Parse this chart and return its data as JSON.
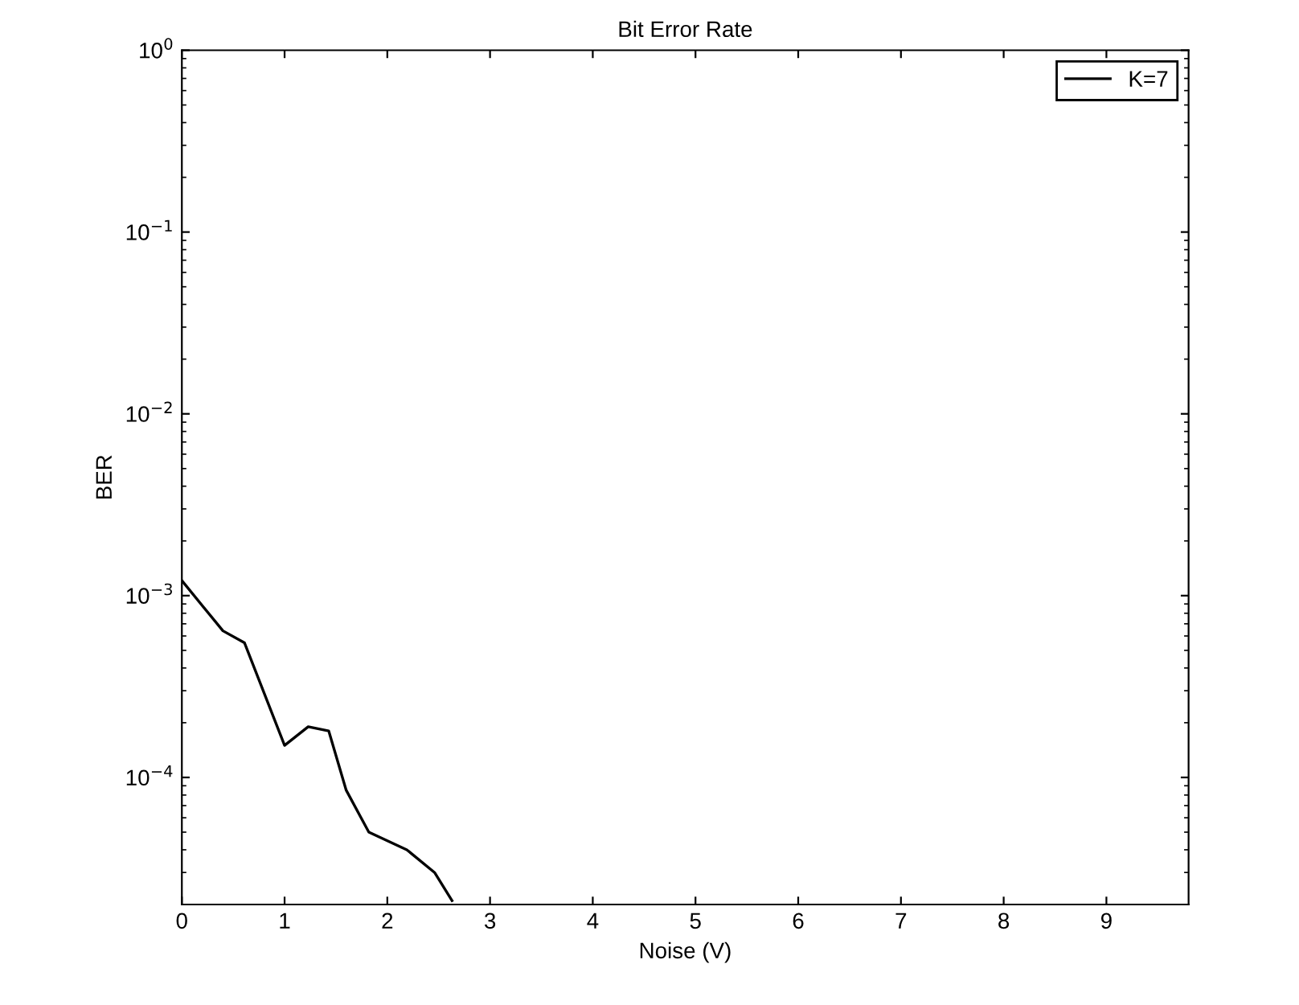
{
  "chart_data": {
    "type": "line",
    "title": "Bit Error Rate",
    "xlabel": "Noise (V)",
    "ylabel": "BER",
    "log": "y",
    "xlim": [
      0,
      9.8
    ],
    "xticks": [
      0,
      1,
      2,
      3,
      4,
      5,
      6,
      7,
      8,
      9
    ],
    "ylim": [
      2e-05,
      1
    ],
    "yticks": [
      {
        "value": 0.0001,
        "label": "10$^{−4}$"
      },
      {
        "value": 0.001,
        "label": "10$^{−3}$"
      },
      {
        "value": 0.01,
        "label": "10$^{−2}$"
      },
      {
        "value": 0.1,
        "label": "10$^{−1}$"
      },
      {
        "value": 1,
        "label": "10$^{0}$"
      }
    ],
    "grid": false,
    "legend": "top right",
    "marker": "none",
    "line_style": "solid",
    "series": [
      {
        "name": "K=7",
        "color": "#000000",
        "x": [
          0,
          0.4,
          0.61,
          1.0,
          1.23,
          1.43,
          1.6,
          1.82,
          2.19,
          2.46,
          2.63
        ],
        "values": [
          0.00121,
          0.00064,
          0.00055,
          0.00015,
          0.00019,
          0.00018,
          8.5e-05,
          5e-05,
          4e-05,
          3e-05,
          2.1e-05
        ]
      }
    ]
  }
}
